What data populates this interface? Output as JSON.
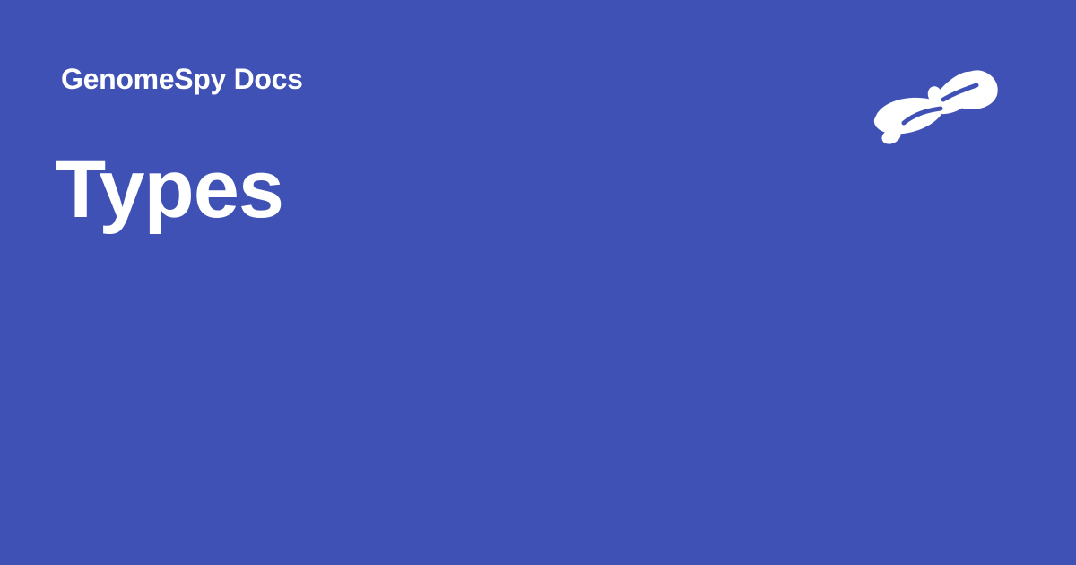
{
  "social_card": {
    "site_name": "GenomeSpy Docs",
    "page_title": "Types",
    "background_color": "#3f51b5",
    "text_color": "#ffffff",
    "logo_icon": "genomespy-logo-icon"
  }
}
